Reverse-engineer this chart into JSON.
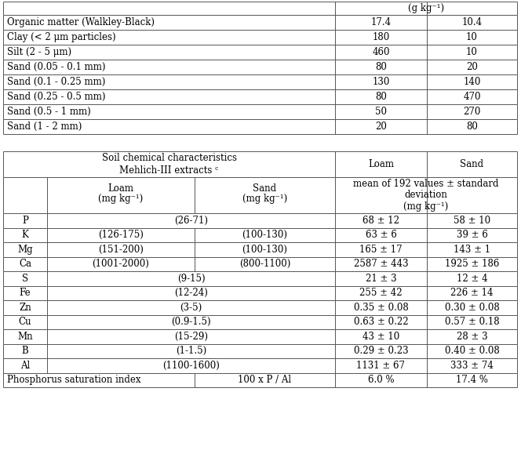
{
  "top_table": {
    "header_unit": "(g kg⁻¹)",
    "rows": [
      [
        "Organic matter (Walkley-Black)",
        "17.4",
        "10.4"
      ],
      [
        "Clay (< 2 μm particles)",
        "180",
        "10"
      ],
      [
        "Silt (2 - 5 μm)",
        "460",
        "10"
      ],
      [
        "Sand (0.05 - 0.1 mm)",
        "80",
        "20"
      ],
      [
        "Sand (0.1 - 0.25 mm)",
        "130",
        "140"
      ],
      [
        "Sand (0.25 - 0.5 mm)",
        "80",
        "470"
      ],
      [
        "Sand (0.5 - 1 mm)",
        "50",
        "270"
      ],
      [
        "Sand (1 - 2 mm)",
        "20",
        "80"
      ]
    ]
  },
  "bottom_table": {
    "rows": [
      [
        "P",
        "(26-71)",
        "",
        "68 ± 12",
        "58 ± 10"
      ],
      [
        "K",
        "(126-175)",
        "(100-130)",
        "63 ± 6",
        "39 ± 6"
      ],
      [
        "Mg",
        "(151-200)",
        "(100-130)",
        "165 ± 17",
        "143 ± 1"
      ],
      [
        "Ca",
        "(1001-2000)",
        "(800-1100)",
        "2587 ± 443",
        "1925 ± 186"
      ],
      [
        "S",
        "(9-15)",
        "",
        "21 ± 3",
        "12 ± 4"
      ],
      [
        "Fe",
        "(12-24)",
        "",
        "255 ± 42",
        "226 ± 14"
      ],
      [
        "Zn",
        "(3-5)",
        "",
        "0.35 ± 0.08",
        "0.30 ± 0.08"
      ],
      [
        "Cu",
        "(0.9-1.5)",
        "",
        "0.63 ± 0.22",
        "0.57 ± 0.18"
      ],
      [
        "Mn",
        "(15-29)",
        "",
        "43 ± 10",
        "28 ± 3"
      ],
      [
        "B",
        "(1-1.5)",
        "",
        "0.29 ± 0.23",
        "0.40 ± 0.08"
      ],
      [
        "Al",
        "(1100-1600)",
        "",
        "1131 ± 67",
        "333 ± 74"
      ],
      [
        "Phosphorus saturation index",
        "100 x P / Al",
        "",
        "6.0 %",
        "17.4 %"
      ]
    ]
  },
  "line_color": "#555555",
  "font_size": 8.5,
  "font_family": "DejaVu Serif"
}
